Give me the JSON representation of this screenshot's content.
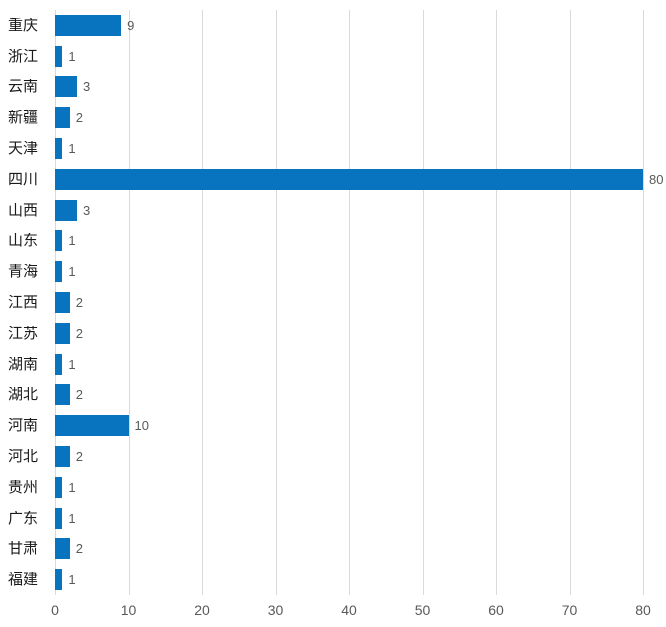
{
  "chart_data": {
    "type": "bar",
    "orientation": "horizontal",
    "title": "",
    "xlabel": "",
    "ylabel": "",
    "categories": [
      "重庆",
      "浙江",
      "云南",
      "新疆",
      "天津",
      "四川",
      "山西",
      "山东",
      "青海",
      "江西",
      "江苏",
      "湖南",
      "湖北",
      "河南",
      "河北",
      "贵州",
      "广东",
      "甘肃",
      "福建"
    ],
    "values": [
      9,
      1,
      3,
      2,
      1,
      80,
      3,
      1,
      1,
      2,
      2,
      1,
      2,
      10,
      2,
      1,
      1,
      2,
      1
    ],
    "data_labels": [
      "9",
      "1",
      "3",
      "2",
      "1",
      "80",
      "3",
      "1",
      "1",
      "2",
      "2",
      "1",
      "2",
      "10",
      "2",
      "1",
      "1",
      "2",
      "1"
    ],
    "xlim": [
      0,
      80
    ],
    "x_ticks": [
      "0",
      "10",
      "20",
      "30",
      "40",
      "50",
      "60",
      "70",
      "80"
    ],
    "grid": true,
    "legend": "none",
    "colors": {
      "bar": "#0873BE",
      "gridline": "#D9D9D9",
      "category_label": "#1a1a1a",
      "value_label": "#595959",
      "axis_tick_label": "#595959",
      "background": "#FFFFFF"
    }
  }
}
